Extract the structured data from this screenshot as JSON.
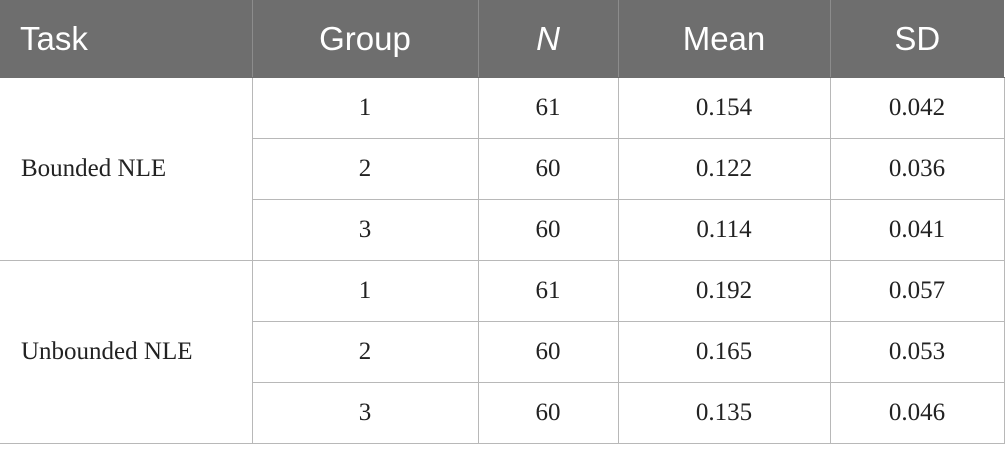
{
  "table": {
    "headers": [
      "Task",
      "Group",
      "N",
      "Mean",
      "SD"
    ],
    "groups": [
      {
        "task": "Bounded NLE",
        "rows": [
          {
            "group": "1",
            "n": "61",
            "mean": "0.154",
            "sd": "0.042"
          },
          {
            "group": "2",
            "n": "60",
            "mean": "0.122",
            "sd": "0.036"
          },
          {
            "group": "3",
            "n": "60",
            "mean": "0.114",
            "sd": "0.041"
          }
        ]
      },
      {
        "task": "Unbounded NLE",
        "rows": [
          {
            "group": "1",
            "n": "61",
            "mean": "0.192",
            "sd": "0.057"
          },
          {
            "group": "2",
            "n": "60",
            "mean": "0.165",
            "sd": "0.053"
          },
          {
            "group": "3",
            "n": "60",
            "mean": "0.135",
            "sd": "0.046"
          }
        ]
      }
    ]
  }
}
